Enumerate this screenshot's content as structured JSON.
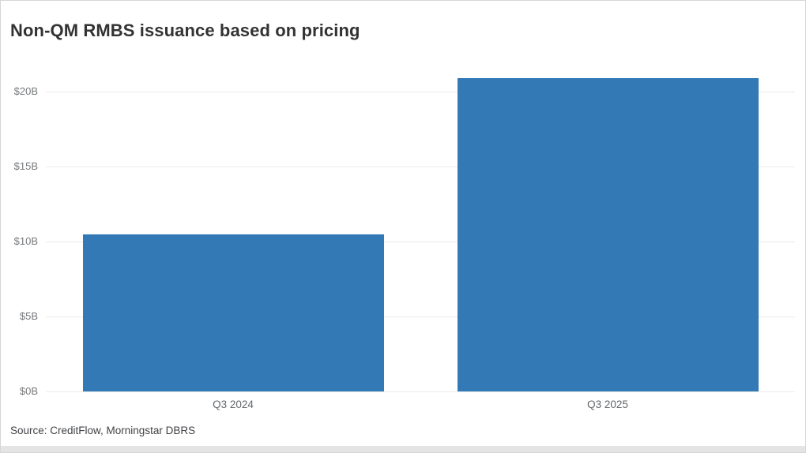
{
  "page": {
    "title": "Non-QM RMBS issuance based on pricing",
    "source": "Source: CreditFlow, Morningstar DBRS"
  },
  "colors": {
    "bar": "#3279b5",
    "gridline": "#ebebeb",
    "title_text": "#333333",
    "axis_tick_text": "#75787b",
    "x_tick_text": "#63666a",
    "source_text": "#404245",
    "card_border": "#d6d6d6",
    "footer_strip": "#e4e4e4"
  },
  "chart_data": {
    "type": "bar",
    "title": "Non-QM RMBS issuance based on pricing",
    "categories": [
      "Q3 2024",
      "Q3 2025"
    ],
    "values": [
      10.5,
      20.9
    ],
    "value_unit": "B USD",
    "xlabel": "",
    "ylabel": "",
    "ylim": [
      0,
      21.5
    ],
    "yticks": [
      0,
      5,
      10,
      15,
      20
    ],
    "ytick_labels": [
      "$0B",
      "$5B",
      "$10B",
      "$15B",
      "$20B"
    ],
    "grid": true,
    "legend": false,
    "source": "Source: CreditFlow, Morningstar DBRS"
  }
}
